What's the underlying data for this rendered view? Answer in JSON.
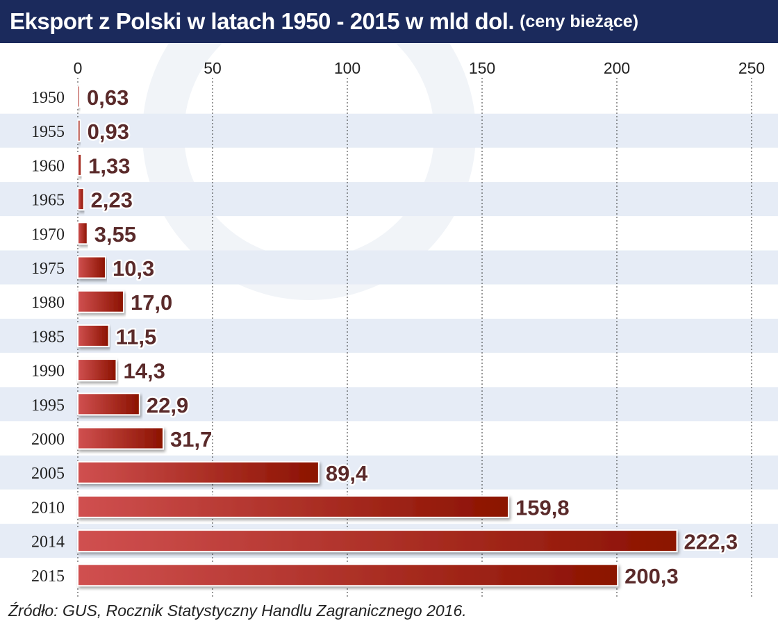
{
  "header": {
    "title": "Eksport z Polski w latach 1950 - 2015 w mld dol.",
    "subtitle": "(ceny bieżące)"
  },
  "source": "Źródło: GUS, Rocznik Statystyczny Handlu Zagranicznego 2016.",
  "colors": {
    "header_bg": "#1b2a5c",
    "bar_light": "#d05050",
    "bar_dark": "#8b1200",
    "band": "#e6ecf6",
    "label_fill": "#5a2a2a"
  },
  "chart_data": {
    "type": "bar",
    "orientation": "horizontal",
    "title": "Eksport z Polski w latach 1950 - 2015 w mld dol. (ceny bieżące)",
    "categories": [
      "1950",
      "1955",
      "1960",
      "1965",
      "1970",
      "1975",
      "1980",
      "1985",
      "1990",
      "1995",
      "2000",
      "2005",
      "2010",
      "2014",
      "2015"
    ],
    "values": [
      0.63,
      0.93,
      1.33,
      2.23,
      3.55,
      10.3,
      17.0,
      11.5,
      14.3,
      22.9,
      31.7,
      89.4,
      159.8,
      222.3,
      200.3
    ],
    "value_labels": [
      "0,63",
      "0,93",
      "1,33",
      "2,23",
      "3,55",
      "10,3",
      "17,0",
      "11,5",
      "14,3",
      "22,9",
      "31,7",
      "89,4",
      "159,8",
      "222,3",
      "200,3"
    ],
    "xlim": [
      0,
      250
    ],
    "xticks": [
      0,
      50,
      100,
      150,
      200,
      250
    ],
    "xtick_labels": [
      "0",
      "50",
      "100",
      "150",
      "200",
      "250"
    ],
    "grid": true,
    "xlabel": "",
    "ylabel": ""
  }
}
